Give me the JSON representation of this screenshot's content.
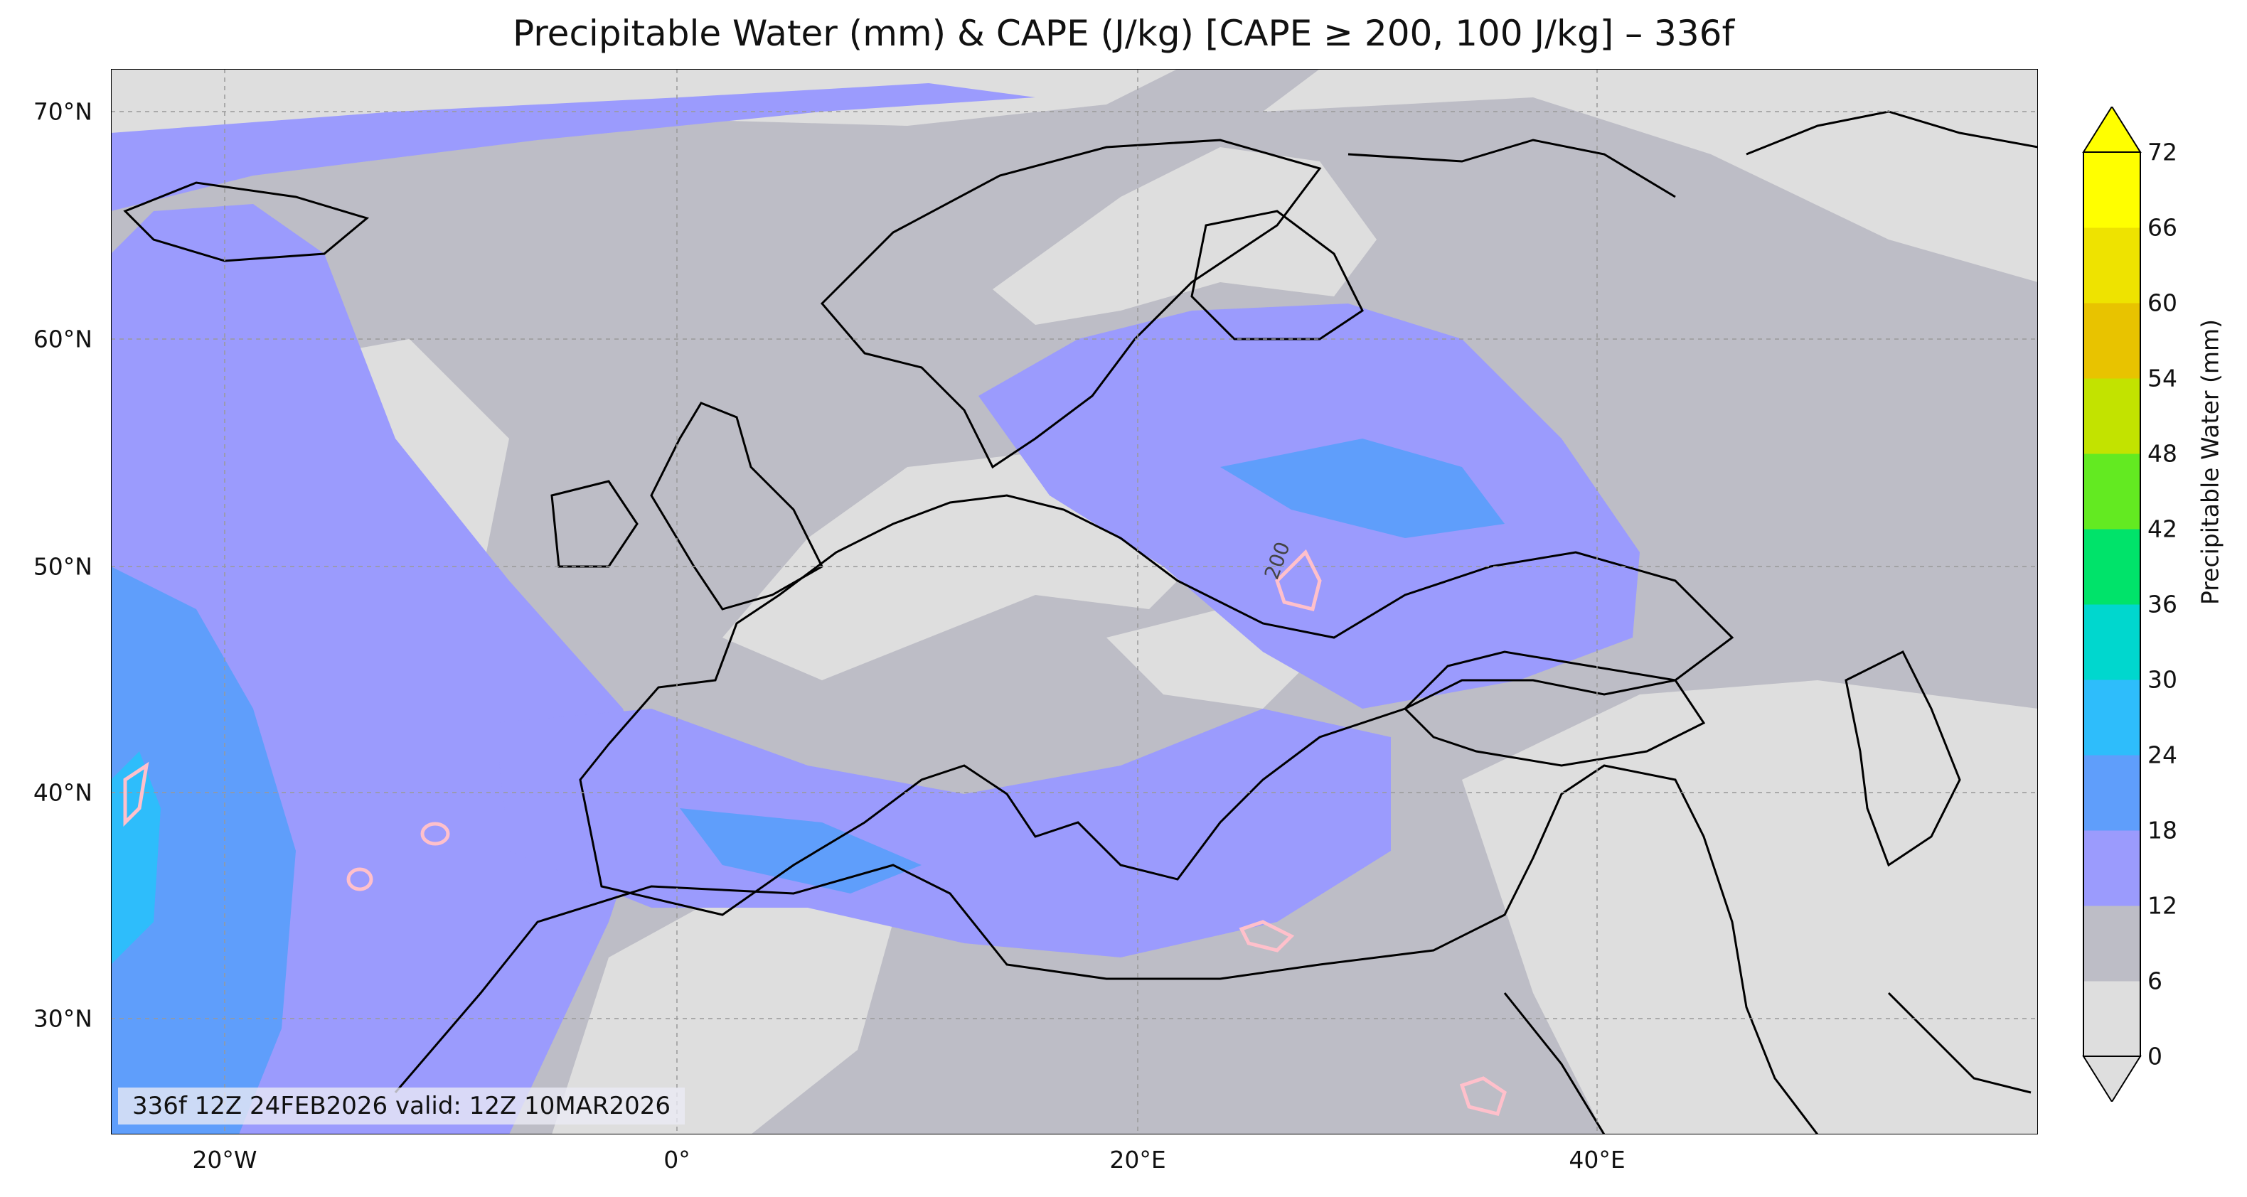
{
  "title": "Precipitable Water (mm) & CAPE (J/kg) [CAPE ≥ 200, 100 J/kg] – 336f",
  "stamp": "336f 12Z 24FEB2026 valid: 12Z 10MAR2026",
  "lat_labels": [
    "70°N",
    "60°N",
    "50°N",
    "40°N",
    "30°N"
  ],
  "lon_labels": [
    "20°W",
    "0°",
    "20°E",
    "40°E"
  ],
  "contour_label": "200",
  "colorbar": {
    "label": "Precipitable Water (mm)",
    "ticks": [
      "0",
      "6",
      "12",
      "18",
      "24",
      "30",
      "36",
      "42",
      "48",
      "54",
      "60",
      "66",
      "72"
    ],
    "colors": [
      "#dedede",
      "#bdbdc6",
      "#9b9bfd",
      "#5f9efb",
      "#2ebdfb",
      "#00d7ce",
      "#00e36a",
      "#63ea21",
      "#c2e300",
      "#e8c300",
      "#eee300",
      "#ffff00"
    ]
  },
  "fill_colors": {
    "dry": "#dedede",
    "pw6": "#bdbdc6",
    "pw12": "#9b9bfd",
    "pw18": "#5f9efb",
    "pw24": "#2ebdfb",
    "cape": "#ffc0cb",
    "coast": "#000000",
    "grid": "#999999"
  }
}
